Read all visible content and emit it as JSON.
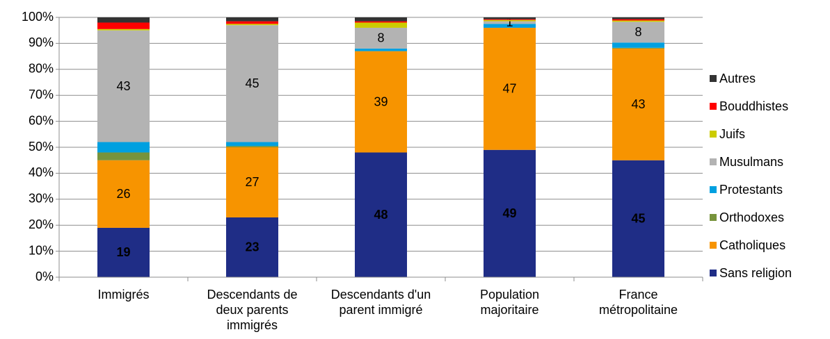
{
  "chart_data": {
    "type": "stacked_bar",
    "categories": [
      "Immigrés",
      "Descendants de deux parents immigrés",
      "Descendants d'un parent immigré",
      "Population majoritaire",
      "France métropolitaine"
    ],
    "series": [
      {
        "name": "Sans religion",
        "color": "#1f2d86",
        "label_color": "#ffffff",
        "values": [
          19,
          23,
          48,
          49,
          45
        ],
        "value_labels": [
          "19",
          "23",
          "48",
          "49",
          "45"
        ]
      },
      {
        "name": "Catholiques",
        "color": "#f79400",
        "label_color": "#000000",
        "values": [
          26,
          27,
          39,
          47,
          43
        ],
        "value_labels": [
          "26",
          "27",
          "39",
          "47",
          "43"
        ]
      },
      {
        "name": "Orthodoxes",
        "color": "#77933c",
        "values": [
          3,
          0.5,
          0,
          0,
          0.3
        ]
      },
      {
        "name": "Protestants",
        "color": "#00a0e0",
        "values": [
          4,
          1.5,
          1,
          1.5,
          2
        ]
      },
      {
        "name": "Musulmans",
        "color": "#b3b3b3",
        "label_color": "#000000",
        "values": [
          43,
          45,
          8,
          1,
          8
        ],
        "value_labels": [
          "43",
          "45",
          "8",
          "1",
          "8"
        ]
      },
      {
        "name": "Juifs",
        "color": "#cccc00",
        "values": [
          0.5,
          0.5,
          2,
          0.5,
          0.5
        ]
      },
      {
        "name": "Bouddhistes",
        "color": "#ff0000",
        "values": [
          2.5,
          1,
          0.5,
          0.3,
          0.5
        ]
      },
      {
        "name": "Autres",
        "color": "#333333",
        "values": [
          2,
          1.5,
          1.5,
          0.7,
          0.7
        ]
      }
    ],
    "ylim": [
      0,
      100
    ],
    "yticks": [
      {
        "value": 0,
        "label": "0%"
      },
      {
        "value": 10,
        "label": "10%"
      },
      {
        "value": 20,
        "label": "20%"
      },
      {
        "value": 30,
        "label": "30%"
      },
      {
        "value": 40,
        "label": "40%"
      },
      {
        "value": 50,
        "label": "50%"
      },
      {
        "value": 60,
        "label": "60%"
      },
      {
        "value": 70,
        "label": "70%"
      },
      {
        "value": 80,
        "label": "80%"
      },
      {
        "value": 90,
        "label": "90%"
      },
      {
        "value": 100,
        "label": "100%"
      }
    ],
    "grid": true,
    "legend": "right"
  }
}
